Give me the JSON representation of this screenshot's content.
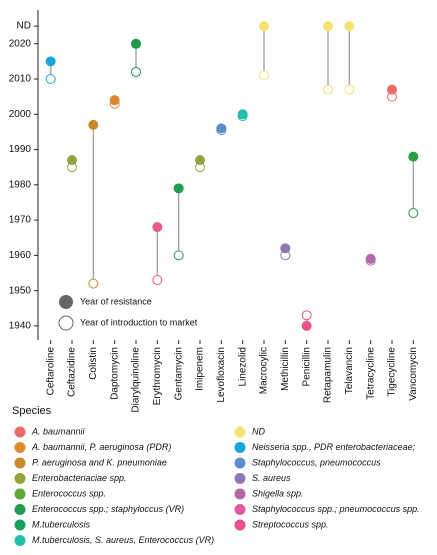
{
  "chart_data": {
    "type": "dumbbell",
    "categories": [
      "Ceftaroline",
      "Ceftazidine",
      "Colistin",
      "Daptomycin",
      "Diarylquinoline",
      "Erythromycin",
      "Gentamycin",
      "Imipenem",
      "Levofloxacin",
      "Linezolid",
      "Macrocylic",
      "Methicillin",
      "Penicillin",
      "Retapamulin",
      "Telavancin",
      "Tetracycline",
      "Tigecycline",
      "Vancomycin"
    ],
    "series": [
      {
        "name": "Year of resistance",
        "color": "#666666",
        "values": [
          2015,
          1987,
          1997,
          2004,
          2020,
          1968,
          1979,
          1987,
          1996,
          2000,
          2025,
          1962,
          1940,
          2025,
          2025,
          1959,
          2007,
          1988
        ]
      },
      {
        "name": "Year of introduction to market",
        "color": "#666666",
        "values": [
          2010,
          1985,
          1952,
          2003,
          2012,
          1953,
          1960,
          1985,
          1995.5,
          1999.5,
          2011,
          1960,
          1943,
          2007,
          2007,
          1958.5,
          2005,
          1972
        ]
      }
    ],
    "colors": [
      "#19a6d5",
      "#93a43a",
      "#c98a2e",
      "#de8a2c",
      "#1a9a48",
      "#e8588f",
      "#1f9c4f",
      "#93a43a",
      "#5a8ec8",
      "#22bfa9",
      "#f4e46e",
      "#8d77b0",
      "#ea4f86",
      "#f4e46e",
      "#f4e46e",
      "#b568a9",
      "#ee6a6a",
      "#2a9e45"
    ],
    "ylim": [
      1936,
      2029
    ],
    "yticks": [
      1940,
      1950,
      1960,
      1970,
      1980,
      1990,
      2000,
      2010,
      2020,
      {
        "value": 2025,
        "label": "ND"
      }
    ],
    "legend_title": "Species",
    "species": [
      {
        "name": "A. baumannii",
        "color": "#ee6a6a"
      },
      {
        "name": "A. baumannii, P. aeruginosa (PDR)",
        "color": "#de8a2c"
      },
      {
        "name": "P. aeruginosa and K. pneumoniae",
        "color": "#c98a2e"
      },
      {
        "name": "Enterobacteriaciae spp.",
        "color": "#93a43a"
      },
      {
        "name": "Enterococcus spp.",
        "color": "#5ea83a"
      },
      {
        "name": "Enterococcus spp.; staphyloccus (VR)",
        "color": "#1f9c4f"
      },
      {
        "name": "M.tuberculosis",
        "color": "#14a35a"
      },
      {
        "name": "M.tuberculosis, S. aureus, Enterococcus (VR)",
        "color": "#22bfa9"
      },
      {
        "name": "ND",
        "color": "#f4e46e"
      },
      {
        "name": "Neisseria spp., PDR enterobacteriaceae;",
        "color": "#19a6d5"
      },
      {
        "name": "Staphylococcus, pneumococcus",
        "color": "#5a8ec8"
      },
      {
        "name": "S. aureus",
        "color": "#8d77b0"
      },
      {
        "name": "Shigella spp.",
        "color": "#b568a9"
      },
      {
        "name": "Staphylococcus spp.; pneumococcus spp.",
        "color": "#e059a0"
      },
      {
        "name": "Streptococcus spp.",
        "color": "#e8508a"
      }
    ]
  }
}
